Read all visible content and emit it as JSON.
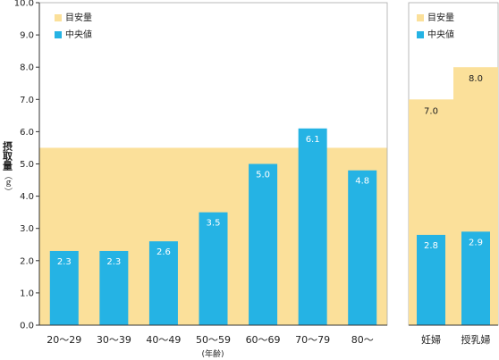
{
  "colors": {
    "meyasu": "#FBE09A",
    "median": "#25B3E4",
    "axis": "#333333",
    "grid": "#aaaaaa"
  },
  "legend": {
    "meyasu_label": "目安量",
    "median_label": "中央値"
  },
  "axis": {
    "ylabel": "摂取量",
    "yunit": "（ｇ）",
    "xunit": "(年齢)",
    "ylim": [
      0,
      10
    ],
    "yticks": [
      "0.0",
      "1.0",
      "2.0",
      "3.0",
      "4.0",
      "5.0",
      "6.0",
      "7.0",
      "8.0",
      "9.0",
      "10.0"
    ]
  },
  "chart_data": [
    {
      "type": "bar",
      "title": "",
      "xlabel": "(年齢)",
      "ylabel": "摂取量（ｇ）",
      "ylim": [
        0,
        10
      ],
      "grid": false,
      "legend_position": "top-left",
      "categories": [
        "20〜29",
        "30〜39",
        "40〜49",
        "50〜59",
        "60〜69",
        "70〜79",
        "80〜"
      ],
      "series": [
        {
          "name": "目安量",
          "kind": "band",
          "values": [
            5.5,
            5.5,
            5.5,
            5.5,
            5.5,
            5.5,
            5.5
          ]
        },
        {
          "name": "中央値",
          "values": [
            2.3,
            2.3,
            2.6,
            3.5,
            5.0,
            6.1,
            4.8
          ],
          "labels": [
            "2.3",
            "2.3",
            "2.6",
            "3.5",
            "5.0",
            "6.1",
            "4.8"
          ]
        }
      ]
    },
    {
      "type": "bar",
      "title": "",
      "ylim": [
        0,
        10
      ],
      "grid": false,
      "legend_position": "top-left",
      "categories": [
        "妊婦",
        "授乳婦"
      ],
      "series": [
        {
          "name": "目安量",
          "values": [
            7.0,
            8.0
          ],
          "labels": [
            "7.0",
            "8.0"
          ]
        },
        {
          "name": "中央値",
          "values": [
            2.8,
            2.9
          ],
          "labels": [
            "2.8",
            "2.9"
          ]
        }
      ]
    }
  ]
}
